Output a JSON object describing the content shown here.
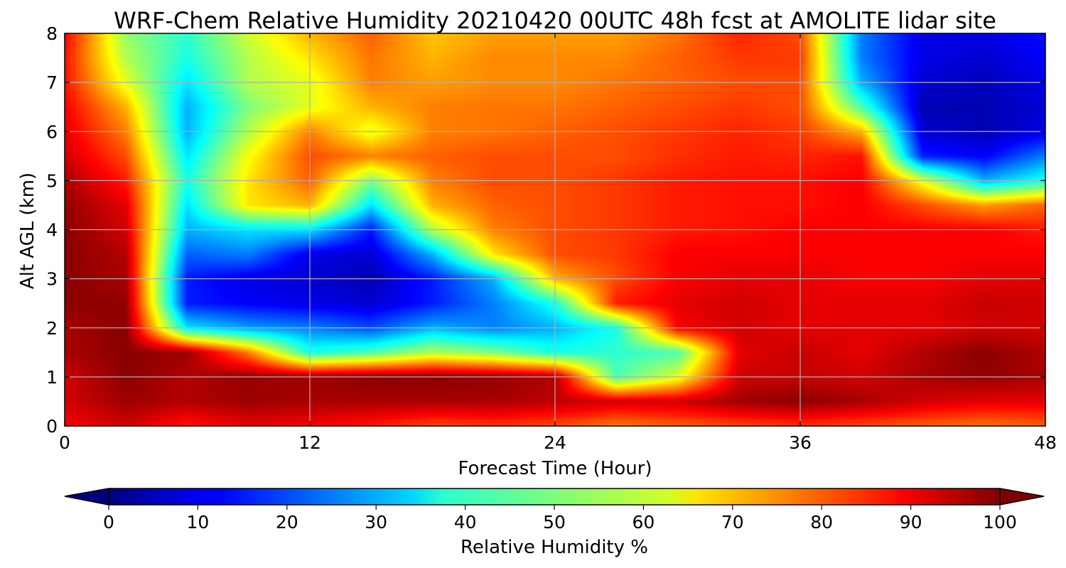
{
  "chart_data": {
    "type": "heatmap",
    "title": "WRF-Chem Relative Humidity 20210420 00UTC 48h fcst at AMOLITE lidar site",
    "xlabel": "Forecast Time (Hour)",
    "ylabel": "Alt AGL (km)",
    "xlim": [
      0,
      48
    ],
    "ylim": [
      0,
      8
    ],
    "x_ticks": [
      0,
      12,
      24,
      36,
      48
    ],
    "y_ticks": [
      0,
      1,
      2,
      3,
      4,
      5,
      6,
      7,
      8
    ],
    "grid": true,
    "colormap": "jet",
    "colorbar": {
      "label": "Relative Humidity %",
      "ticks": [
        0,
        10,
        20,
        30,
        40,
        50,
        60,
        70,
        80,
        90,
        100
      ],
      "range": [
        0,
        100
      ],
      "extend": "both",
      "orientation": "horizontal"
    },
    "x": [
      0,
      3,
      6,
      9,
      12,
      15,
      18,
      21,
      24,
      27,
      30,
      33,
      36,
      39,
      42,
      45,
      48
    ],
    "y": [
      0,
      0.5,
      1,
      1.5,
      2,
      2.5,
      3,
      3.5,
      4,
      4.5,
      5,
      5.5,
      6,
      6.5,
      7,
      7.5,
      8
    ],
    "values": [
      [
        88,
        92,
        85,
        90,
        88,
        85,
        80,
        82,
        80,
        75,
        78,
        80,
        82,
        80,
        78,
        76,
        78
      ],
      [
        92,
        97,
        95,
        97,
        96,
        96,
        96,
        96,
        94,
        92,
        92,
        97,
        99,
        96,
        92,
        90,
        90
      ],
      [
        92,
        99,
        95,
        98,
        97,
        99,
        99,
        98,
        95,
        45,
        60,
        92,
        93,
        92,
        96,
        98,
        96
      ],
      [
        96,
        99,
        97,
        75,
        40,
        45,
        55,
        50,
        40,
        42,
        45,
        90,
        93,
        90,
        95,
        99,
        95
      ],
      [
        96,
        99,
        35,
        28,
        25,
        20,
        30,
        25,
        30,
        40,
        88,
        92,
        90,
        90,
        90,
        92,
        92
      ],
      [
        99,
        98,
        15,
        12,
        10,
        8,
        15,
        25,
        40,
        85,
        90,
        92,
        90,
        90,
        90,
        93,
        92
      ],
      [
        99,
        96,
        15,
        10,
        8,
        5,
        15,
        30,
        70,
        80,
        88,
        90,
        90,
        88,
        88,
        90,
        90
      ],
      [
        99,
        95,
        22,
        25,
        10,
        8,
        30,
        65,
        80,
        82,
        88,
        88,
        88,
        88,
        88,
        88,
        88
      ],
      [
        99,
        92,
        30,
        35,
        35,
        15,
        55,
        75,
        80,
        82,
        85,
        86,
        88,
        88,
        88,
        88,
        85
      ],
      [
        98,
        90,
        35,
        65,
        70,
        35,
        70,
        78,
        80,
        82,
        85,
        86,
        86,
        88,
        80,
        72,
        78
      ],
      [
        96,
        85,
        40,
        65,
        78,
        50,
        75,
        80,
        80,
        82,
        85,
        86,
        86,
        88,
        60,
        30,
        40
      ],
      [
        92,
        80,
        35,
        62,
        80,
        75,
        78,
        80,
        80,
        80,
        83,
        85,
        84,
        86,
        15,
        12,
        25
      ],
      [
        90,
        75,
        30,
        55,
        75,
        60,
        75,
        76,
        78,
        80,
        82,
        84,
        82,
        70,
        8,
        5,
        10
      ],
      [
        88,
        70,
        30,
        50,
        60,
        70,
        75,
        76,
        76,
        78,
        80,
        82,
        80,
        45,
        5,
        5,
        8
      ],
      [
        86,
        60,
        35,
        55,
        60,
        75,
        72,
        74,
        74,
        76,
        78,
        80,
        80,
        30,
        8,
        6,
        10
      ],
      [
        86,
        55,
        40,
        55,
        65,
        76,
        70,
        74,
        74,
        74,
        78,
        82,
        82,
        25,
        10,
        8,
        12
      ],
      [
        88,
        52,
        42,
        58,
        70,
        78,
        68,
        72,
        72,
        72,
        76,
        84,
        80,
        25,
        10,
        10,
        14
      ]
    ]
  }
}
